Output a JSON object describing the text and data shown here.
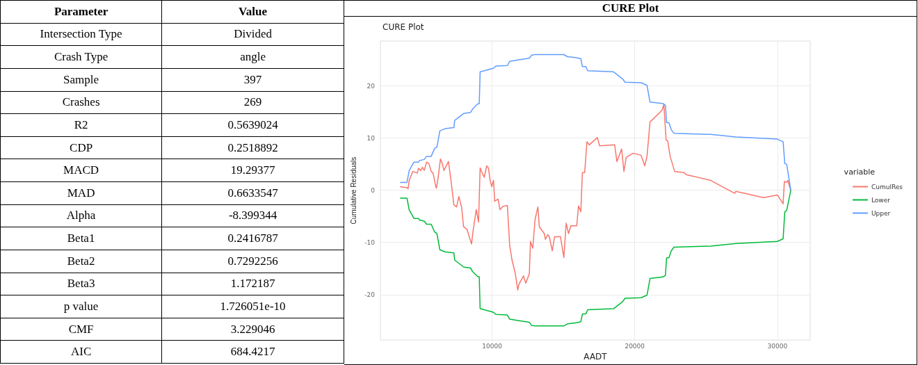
{
  "chart_data": [
    {
      "type": "other",
      "annotations": [
        "Parameter",
        "Value",
        "Intersection Type",
        "Divided",
        "Crash Type",
        "angle",
        "Sample",
        "397",
        "Crashes",
        "269",
        "R2",
        "0.5639024",
        "CDP",
        "0.2518892",
        "MACD",
        "19.29377",
        "MAD",
        "0.6633547",
        "Alpha",
        "-8.399344",
        "Beta1",
        "0.2416787",
        "Beta2",
        "0.7292256",
        "Beta3",
        "1.172187",
        "p value",
        "1.726051e-10",
        "CMF",
        "3.229046",
        "AIC",
        "684.4217"
      ]
    },
    {
      "type": "line",
      "title": "CURE Plot",
      "subtitle": "CURE Plot",
      "xlabel": "AADT",
      "ylabel": "Cumulative Residuals",
      "legend_title": "variable",
      "legend": "right",
      "grid": true,
      "line_style": "solid",
      "xlim": [
        2170,
        32300
      ],
      "xticks": [
        10000,
        20000,
        30000
      ],
      "ylim": [
        -28.7,
        28.6
      ],
      "yticks": [
        -20,
        -10,
        0,
        10,
        20
      ],
      "series": [
        {
          "name": "CumulRes",
          "color": "#f8766d",
          "x": [
            3545,
            4030,
            4110,
            4190,
            4430,
            4760,
            4840,
            5000,
            5120,
            5240,
            5410,
            5570,
            5730,
            5860,
            6050,
            6100,
            6210,
            6380,
            6510,
            6620,
            6940,
            7100,
            7320,
            7510,
            7670,
            7860,
            8000,
            8240,
            8400,
            8560,
            8640,
            8890,
            9050,
            9160,
            9290,
            9450,
            9620,
            9750,
            9860,
            9970,
            10100,
            10180,
            10420,
            10550,
            10750,
            11070,
            11230,
            11390,
            11630,
            11800,
            11880,
            12200,
            12360,
            12610,
            12690,
            12850,
            13010,
            13210,
            13310,
            13660,
            13740,
            13900,
            14010,
            14220,
            14380,
            14790,
            15030,
            15190,
            15360,
            15520,
            15930,
            16060,
            16220,
            16330,
            16490,
            16650,
            16810,
            17380,
            17540,
            18590,
            18750,
            19080,
            19240,
            19400,
            19890,
            20450,
            20700,
            20860,
            21070,
            21910,
            22040,
            22200,
            22310,
            22480,
            22800,
            23450,
            23610,
            25310,
            27010,
            27090,
            29030,
            30000,
            30400,
            30490,
            30650,
            30730,
            30940
          ],
          "values": [
            0.7,
            0.5,
            0.3,
            1.9,
            3.6,
            3.3,
            4.2,
            3.8,
            4.4,
            3.8,
            5.4,
            5.1,
            3.6,
            3.3,
            0.7,
            0.4,
            2.3,
            6.0,
            5.1,
            3.8,
            5.5,
            2.3,
            -2.8,
            -3.2,
            -1.2,
            -3.2,
            -7.0,
            -7.5,
            -8.9,
            -10.3,
            -8.3,
            -3.7,
            -6.1,
            4.3,
            3.4,
            2.5,
            4.7,
            4.2,
            1.9,
            0.7,
            1.9,
            -2.1,
            -1.7,
            -3.7,
            -3.1,
            -2.9,
            -10.5,
            -13.3,
            -16.0,
            -19.1,
            -18.0,
            -16.4,
            -17.8,
            -16.0,
            -9.8,
            -11.1,
            -5.6,
            -3.2,
            -7.0,
            -8.3,
            -9.4,
            -8.5,
            -8.9,
            -11.6,
            -8.9,
            -8.9,
            -12.9,
            -6.3,
            -8.3,
            -6.8,
            -6.8,
            -3.0,
            -4.1,
            3.4,
            3.4,
            9.3,
            8.7,
            10.1,
            8.5,
            8.7,
            5.5,
            7.9,
            3.6,
            6.3,
            7.1,
            6.7,
            4.7,
            6.5,
            13.1,
            15.3,
            16.4,
            9.6,
            9.5,
            6.5,
            3.6,
            3.4,
            3.0,
            1.9,
            -0.6,
            -0.2,
            -1.4,
            -0.9,
            -2.6,
            1.7,
            1.5,
            1.9,
            -0.1
          ]
        },
        {
          "name": "Lower",
          "color": "#00ba38",
          "x": [
            3545,
            4030,
            4190,
            4520,
            4840,
            4920,
            5240,
            5410,
            5730,
            5970,
            6130,
            6340,
            6700,
            7320,
            7380,
            7670,
            8000,
            8480,
            8640,
            8970,
            9100,
            9160,
            9450,
            10100,
            10260,
            11070,
            11230,
            11880,
            12610,
            12770,
            13010,
            15030,
            15280,
            15930,
            16220,
            16330,
            16570,
            16700,
            18510,
            18840,
            19160,
            19320,
            20450,
            20860,
            21070,
            21990,
            22150,
            22230,
            22400,
            22560,
            22750,
            25310,
            27090,
            30000,
            30400,
            30520,
            30650,
            30940
          ],
          "values": [
            -1.5,
            -1.5,
            -3.8,
            -5.4,
            -5.4,
            -5.7,
            -5.9,
            -6.5,
            -6.5,
            -8.0,
            -8.3,
            -11.4,
            -11.8,
            -12.0,
            -13.4,
            -14.0,
            -14.7,
            -14.9,
            -15.6,
            -16.5,
            -16.6,
            -22.7,
            -22.9,
            -23.4,
            -23.8,
            -23.9,
            -24.7,
            -25.0,
            -25.3,
            -25.9,
            -26.0,
            -26.0,
            -25.6,
            -25.4,
            -25.2,
            -23.7,
            -23.7,
            -22.9,
            -22.7,
            -22.0,
            -21.3,
            -20.7,
            -20.6,
            -20.1,
            -16.9,
            -16.6,
            -16.3,
            -13.0,
            -12.9,
            -11.6,
            -10.9,
            -10.7,
            -10.2,
            -9.8,
            -9.3,
            -4.1,
            -3.9,
            0
          ]
        },
        {
          "name": "Upper",
          "color": "#619cff",
          "x": [
            3545,
            4030,
            4190,
            4520,
            4840,
            4920,
            5240,
            5410,
            5730,
            5970,
            6130,
            6340,
            6700,
            7320,
            7380,
            7670,
            8000,
            8480,
            8640,
            8970,
            9100,
            9160,
            9450,
            10100,
            10260,
            11070,
            11230,
            11880,
            12610,
            12770,
            13010,
            15030,
            15280,
            15930,
            16220,
            16330,
            16570,
            16700,
            18510,
            18840,
            19160,
            19320,
            20450,
            20860,
            21070,
            21990,
            22150,
            22230,
            22400,
            22560,
            22750,
            25310,
            27090,
            30000,
            30400,
            30520,
            30650,
            30940
          ],
          "values": [
            1.5,
            1.5,
            3.8,
            5.4,
            5.4,
            5.7,
            5.9,
            6.5,
            6.5,
            8.0,
            8.3,
            11.4,
            11.8,
            12.0,
            13.4,
            14.0,
            14.7,
            14.9,
            15.6,
            16.5,
            16.6,
            22.7,
            22.9,
            23.4,
            23.8,
            23.9,
            24.7,
            25.0,
            25.3,
            25.9,
            26.0,
            26.0,
            25.6,
            25.4,
            25.2,
            23.7,
            23.7,
            22.9,
            22.7,
            22.0,
            21.3,
            20.7,
            20.6,
            20.1,
            16.9,
            16.6,
            16.3,
            13.0,
            12.9,
            11.6,
            10.9,
            10.7,
            10.2,
            9.8,
            9.3,
            5.1,
            5.0,
            0
          ]
        }
      ]
    }
  ]
}
